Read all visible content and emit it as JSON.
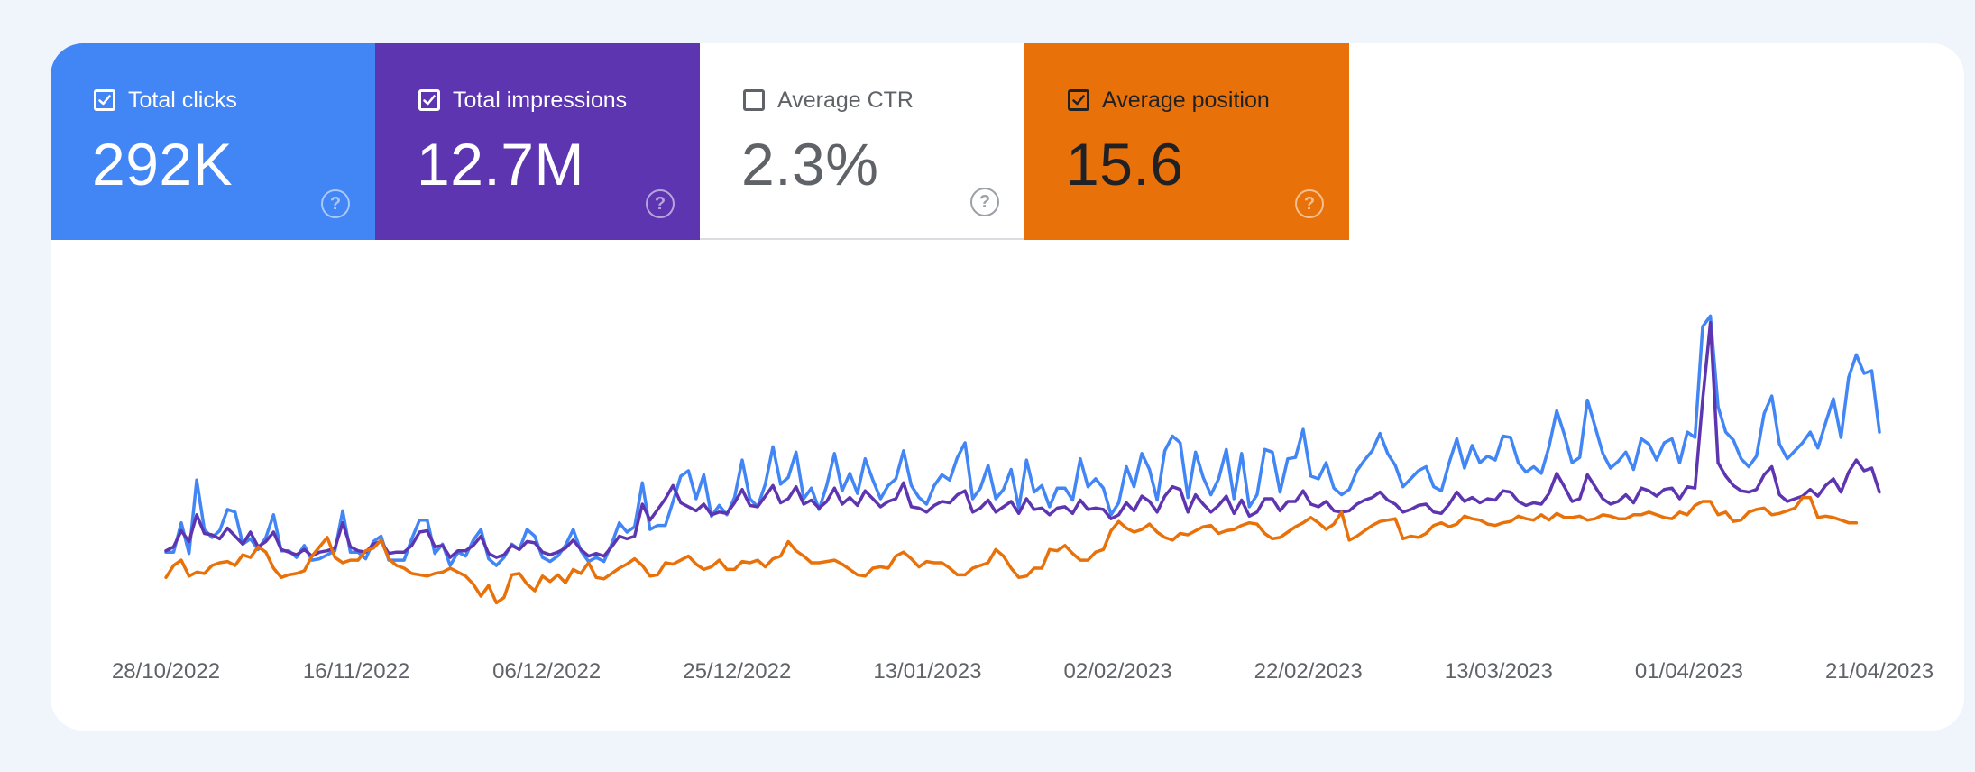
{
  "metrics": {
    "clicks": {
      "label": "Total clicks",
      "value": "292K",
      "checked": true,
      "color": "#4285f4"
    },
    "impressions": {
      "label": "Total impressions",
      "value": "12.7M",
      "checked": true,
      "color": "#5e35b1"
    },
    "ctr": {
      "label": "Average CTR",
      "value": "2.3%",
      "checked": false,
      "color": "#ffffff"
    },
    "position": {
      "label": "Average position",
      "value": "15.6",
      "checked": true,
      "color": "#e8710a"
    }
  },
  "help_glyph": "?",
  "icons": [
    "checkbox-checked-icon",
    "checkbox-unchecked-icon",
    "help-icon"
  ],
  "chart_data": {
    "type": "line",
    "x_tick_labels": [
      "28/10/2022",
      "16/11/2022",
      "06/12/2022",
      "25/12/2022",
      "13/01/2023",
      "02/02/2023",
      "22/02/2023",
      "13/03/2023",
      "01/04/2023",
      "21/04/2023"
    ],
    "x_range": [
      "28/10/2022",
      "21/04/2023"
    ],
    "grid": false,
    "legend": "none",
    "series": [
      {
        "name": "Total clicks",
        "color": "#4285f4",
        "values": [
          1680,
          1680,
          1900,
          1670,
          2220,
          1850,
          1790,
          1840,
          2000,
          1980,
          1740,
          1780,
          1700,
          1790,
          1960,
          1690,
          1690,
          1640,
          1730,
          1620,
          1630,
          1660,
          1690,
          1990,
          1680,
          1680,
          1630,
          1760,
          1800,
          1620,
          1620,
          1620,
          1780,
          1920,
          1920,
          1670,
          1740,
          1580,
          1680,
          1650,
          1770,
          1850,
          1630,
          1580,
          1640,
          1740,
          1700,
          1850,
          1800,
          1640,
          1610,
          1650,
          1730,
          1850,
          1690,
          1610,
          1640,
          1610,
          1740,
          1900,
          1830,
          1870,
          2200,
          1850,
          1880,
          1880,
          2060,
          2250,
          2290,
          2080,
          2260,
          1950,
          2030,
          1960,
          2090,
          2370,
          2080,
          2020,
          2190,
          2470,
          2190,
          2240,
          2430,
          2080,
          2160,
          2000,
          2180,
          2420,
          2140,
          2270,
          2120,
          2380,
          2220,
          2080,
          2180,
          2230,
          2440,
          2180,
          2090,
          2040,
          2180,
          2260,
          2220,
          2390,
          2500,
          2080,
          2160,
          2330,
          2080,
          2150,
          2300,
          2010,
          2370,
          2130,
          2180,
          2020,
          2160,
          2160,
          2070,
          2380,
          2170,
          2230,
          2160,
          1960,
          2050,
          2320,
          2170,
          2420,
          2300,
          2070,
          2440,
          2550,
          2500,
          2090,
          2430,
          2240,
          2110,
          2230,
          2450,
          2080,
          2420,
          2020,
          2110,
          2450,
          2430,
          2130,
          2380,
          2390,
          2600,
          2250,
          2230,
          2350,
          2160,
          2110,
          2150,
          2290,
          2370,
          2440,
          2570,
          2420,
          2330,
          2170,
          2230,
          2290,
          2320,
          2170,
          2140,
          2350,
          2530,
          2310,
          2480,
          2350,
          2400,
          2370,
          2550,
          2540,
          2350,
          2280,
          2320,
          2270,
          2470,
          2740,
          2560,
          2350,
          2390,
          2820,
          2620,
          2420,
          2310,
          2360,
          2430,
          2300,
          2530,
          2490,
          2370,
          2500,
          2530,
          2350,
          2580,
          2540,
          3370,
          3450,
          2770,
          2580,
          2520,
          2380,
          2320,
          2400,
          2720,
          2850,
          2490,
          2380,
          2440,
          2500,
          2580,
          2460,
          2650,
          2830,
          2540,
          2990,
          3160,
          3020,
          3040,
          2580
        ],
        "note": "values read off an unlabeled y-axis (approximate relative scale 1500–3500)"
      },
      {
        "name": "Total impressions",
        "color": "#5e35b1",
        "values": [
          1690,
          1720,
          1840,
          1760,
          1960,
          1820,
          1810,
          1780,
          1860,
          1800,
          1740,
          1830,
          1720,
          1760,
          1830,
          1700,
          1680,
          1660,
          1700,
          1650,
          1680,
          1690,
          1710,
          1900,
          1720,
          1690,
          1680,
          1740,
          1760,
          1670,
          1680,
          1680,
          1730,
          1830,
          1840,
          1720,
          1730,
          1640,
          1690,
          1690,
          1730,
          1800,
          1670,
          1640,
          1660,
          1730,
          1700,
          1760,
          1750,
          1680,
          1660,
          1680,
          1710,
          1770,
          1700,
          1650,
          1670,
          1650,
          1720,
          1800,
          1780,
          1800,
          2040,
          1920,
          2000,
          2080,
          2180,
          2050,
          2020,
          1990,
          2040,
          1960,
          1980,
          1970,
          2050,
          2150,
          2030,
          2020,
          2100,
          2180,
          2050,
          2080,
          2170,
          2040,
          2070,
          2010,
          2060,
          2160,
          2040,
          2090,
          2030,
          2140,
          2080,
          2020,
          2060,
          2080,
          2200,
          2020,
          2010,
          1980,
          2030,
          2060,
          2050,
          2110,
          2140,
          1980,
          2010,
          2070,
          1980,
          2020,
          2060,
          1970,
          2080,
          2000,
          2010,
          1960,
          2010,
          2020,
          1970,
          2070,
          2000,
          2010,
          2000,
          1930,
          1960,
          2050,
          1990,
          2100,
          2060,
          1980,
          2100,
          2170,
          2150,
          1980,
          2110,
          2040,
          1980,
          2030,
          2100,
          1970,
          2070,
          1950,
          1980,
          2080,
          2080,
          1990,
          2060,
          2060,
          2140,
          2040,
          2020,
          2060,
          1990,
          1980,
          1990,
          2040,
          2070,
          2090,
          2130,
          2070,
          2040,
          1980,
          2000,
          2030,
          2040,
          1980,
          1970,
          2040,
          2130,
          2060,
          2090,
          2050,
          2080,
          2070,
          2140,
          2130,
          2060,
          2030,
          2050,
          2040,
          2120,
          2270,
          2170,
          2060,
          2080,
          2260,
          2170,
          2080,
          2040,
          2060,
          2110,
          2050,
          2160,
          2140,
          2100,
          2150,
          2160,
          2080,
          2170,
          2160,
          2820,
          3400,
          2350,
          2250,
          2180,
          2140,
          2130,
          2150,
          2260,
          2320,
          2110,
          2060,
          2080,
          2100,
          2150,
          2100,
          2180,
          2230,
          2130,
          2280,
          2370,
          2290,
          2310,
          2130
        ],
        "note": "values read off an unlabeled y-axis (approximate relative scale 1500–3500)"
      },
      {
        "name": "Average position",
        "color": "#e8710a",
        "values": [
          1490,
          1580,
          1620,
          1500,
          1530,
          1520,
          1580,
          1600,
          1610,
          1580,
          1660,
          1640,
          1720,
          1680,
          1560,
          1490,
          1510,
          1520,
          1540,
          1650,
          1720,
          1790,
          1640,
          1600,
          1620,
          1620,
          1690,
          1710,
          1770,
          1630,
          1580,
          1560,
          1520,
          1510,
          1500,
          1520,
          1530,
          1560,
          1530,
          1500,
          1440,
          1350,
          1430,
          1300,
          1340,
          1510,
          1520,
          1440,
          1390,
          1500,
          1460,
          1510,
          1450,
          1550,
          1520,
          1600,
          1490,
          1480,
          1520,
          1560,
          1590,
          1630,
          1580,
          1500,
          1510,
          1600,
          1590,
          1620,
          1650,
          1590,
          1550,
          1570,
          1620,
          1550,
          1550,
          1610,
          1600,
          1620,
          1570,
          1630,
          1650,
          1760,
          1690,
          1650,
          1600,
          1600,
          1610,
          1620,
          1590,
          1550,
          1510,
          1500,
          1560,
          1570,
          1560,
          1650,
          1680,
          1630,
          1570,
          1610,
          1600,
          1600,
          1560,
          1510,
          1510,
          1560,
          1580,
          1600,
          1700,
          1650,
          1560,
          1490,
          1500,
          1560,
          1560,
          1700,
          1690,
          1730,
          1670,
          1620,
          1620,
          1680,
          1700,
          1840,
          1910,
          1860,
          1830,
          1850,
          1890,
          1830,
          1790,
          1770,
          1820,
          1810,
          1840,
          1870,
          1880,
          1820,
          1840,
          1850,
          1880,
          1900,
          1890,
          1820,
          1780,
          1790,
          1830,
          1870,
          1900,
          1940,
          1900,
          1850,
          1890,
          1980,
          1770,
          1800,
          1840,
          1880,
          1910,
          1920,
          1930,
          1780,
          1800,
          1790,
          1820,
          1880,
          1900,
          1870,
          1890,
          1950,
          1930,
          1920,
          1890,
          1880,
          1900,
          1910,
          1950,
          1930,
          1920,
          1960,
          1920,
          1970,
          1940,
          1940,
          1950,
          1920,
          1930,
          1960,
          1950,
          1930,
          1930,
          1960,
          1960,
          1980,
          1960,
          1940,
          1930,
          1980,
          1960,
          2030,
          2060,
          2060,
          1960,
          1980,
          1910,
          1920,
          1980,
          2000,
          2010,
          1960,
          1970,
          1990,
          2010,
          2090,
          2090,
          1940,
          1950,
          1940,
          1920,
          1900,
          1900
        ],
        "note": "values read off an unlabeled y-axis (approximate relative scale 1500–3500)"
      }
    ]
  }
}
